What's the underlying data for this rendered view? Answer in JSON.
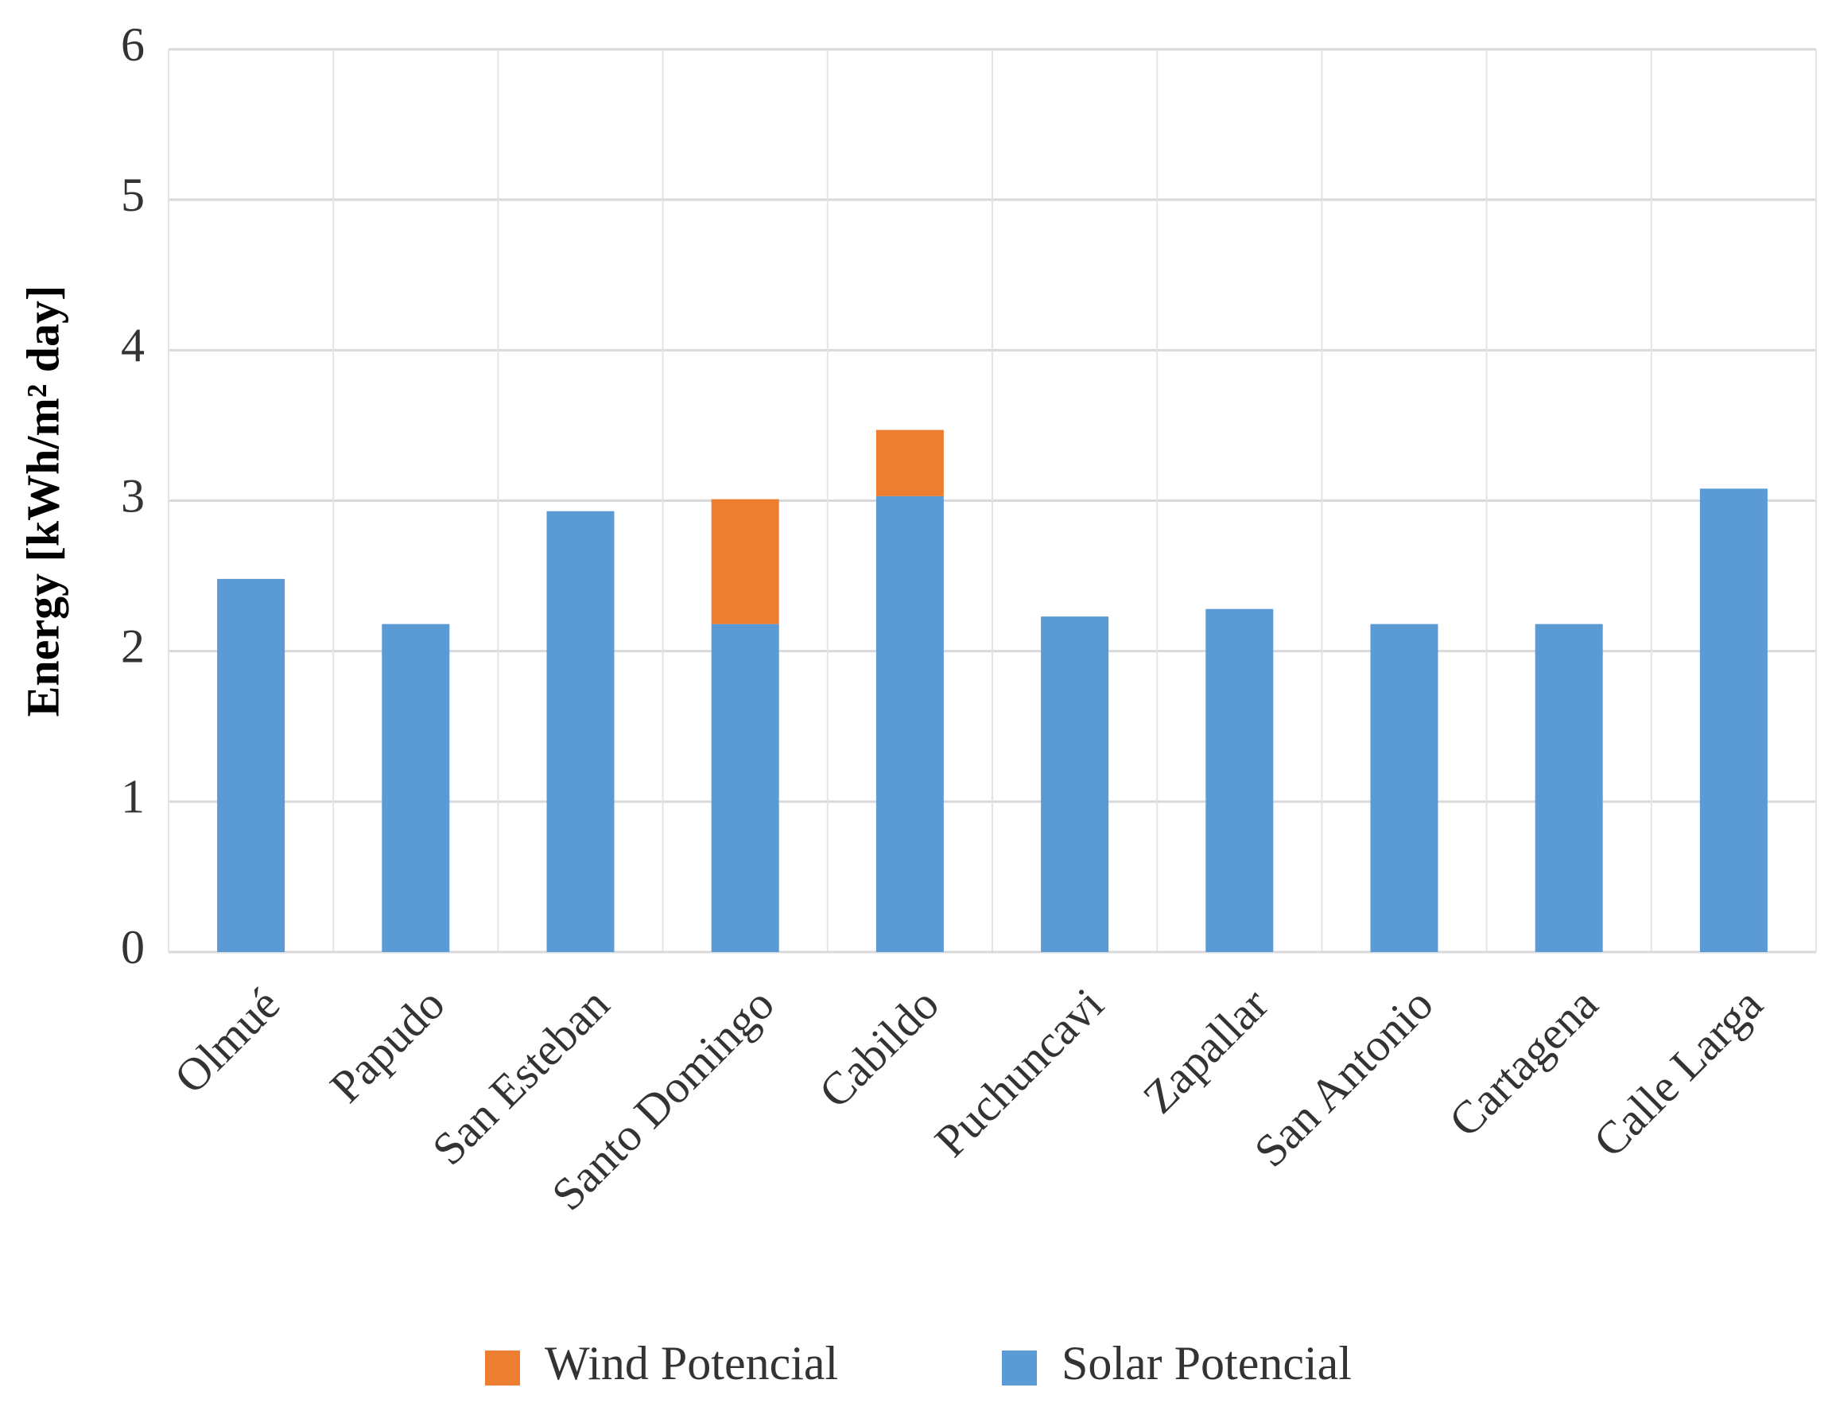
{
  "chart_data": {
    "type": "stacked_bar",
    "y_label": "Energy [kWh/m² day]",
    "categories": [
      "Olmué",
      "Papudo",
      "San Esteban",
      "Santo Domingo",
      "Cabildo",
      "Puchuncavi",
      "Zapallar",
      "San Antonio",
      "Cartagena",
      "Calle Larga"
    ],
    "series": [
      {
        "name": "Solar Potencial",
        "color": "#5b9bd5",
        "values": [
          2.48,
          2.18,
          2.93,
          2.18,
          3.03,
          2.23,
          2.28,
          2.18,
          2.18,
          3.08
        ]
      },
      {
        "name": "Wind Potencial",
        "color": "#ed7d31",
        "values": [
          0,
          0,
          0,
          0.83,
          0.44,
          0,
          0,
          0,
          0,
          0
        ]
      }
    ],
    "ylim": [
      0,
      6
    ],
    "yticks": [
      0,
      1,
      2,
      3,
      4,
      5,
      6
    ],
    "grid": true,
    "legend": "bottom"
  }
}
